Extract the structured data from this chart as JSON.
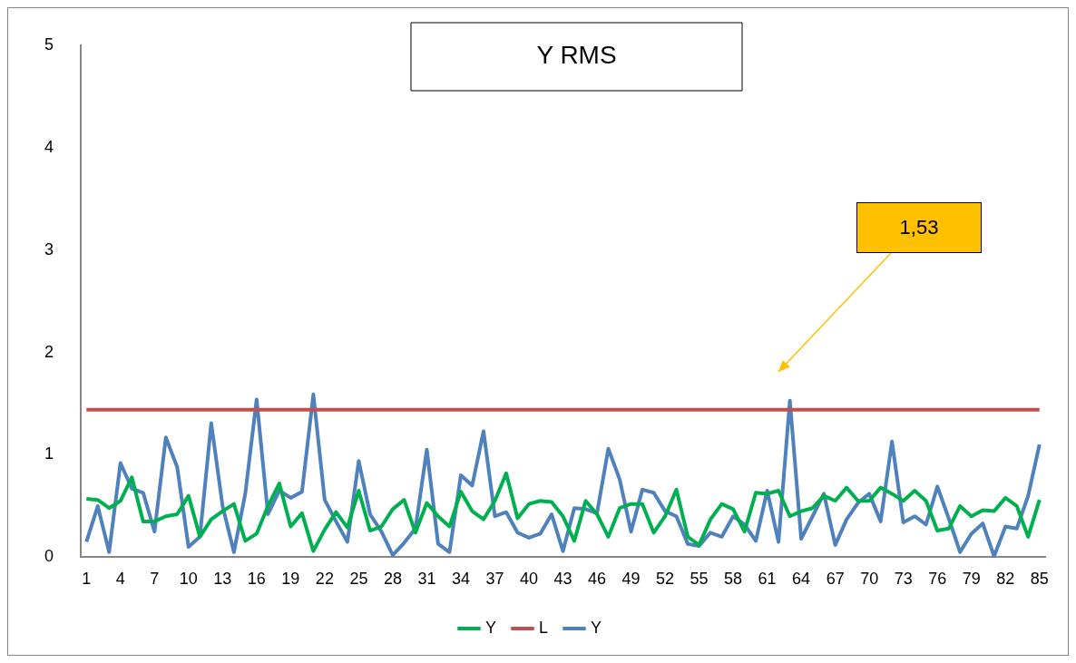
{
  "chart_data": {
    "type": "line",
    "title": "Y RMS",
    "categories": [
      "1",
      null,
      null,
      "4",
      null,
      null,
      "7",
      null,
      null,
      "10",
      null,
      null,
      "13",
      null,
      null,
      "16",
      null,
      null,
      "19",
      null,
      null,
      "22",
      null,
      null,
      "25",
      null,
      null,
      "28",
      null,
      null,
      "31",
      null,
      null,
      "34",
      null,
      null,
      "37",
      null,
      null,
      "40",
      null,
      null,
      "43",
      null,
      null,
      "46",
      null,
      null,
      "49",
      null,
      null,
      "52",
      null,
      null,
      "55",
      null,
      null,
      "58",
      null,
      null,
      "61",
      null,
      null,
      "64",
      null,
      null,
      "67",
      null,
      null,
      "70",
      null,
      null,
      "73",
      null,
      null,
      "76",
      null,
      null,
      "79",
      null,
      null,
      "82",
      null,
      null,
      "85"
    ],
    "series": [
      {
        "name": "Y",
        "color": "#00b050",
        "values": [
          0.57,
          0.56,
          0.48,
          0.55,
          0.78,
          0.35,
          0.35,
          0.4,
          0.42,
          0.6,
          0.2,
          0.37,
          0.45,
          0.52,
          0.16,
          0.23,
          0.5,
          0.72,
          0.3,
          0.43,
          0.06,
          0.27,
          0.44,
          0.29,
          0.65,
          0.26,
          0.3,
          0.47,
          0.56,
          0.24,
          0.53,
          0.4,
          0.3,
          0.64,
          0.45,
          0.37,
          0.55,
          0.82,
          0.38,
          0.52,
          0.55,
          0.54,
          0.4,
          0.16,
          0.55,
          0.42,
          0.2,
          0.48,
          0.52,
          0.52,
          0.24,
          0.4,
          0.66,
          0.2,
          0.12,
          0.37,
          0.52,
          0.47,
          0.25,
          0.63,
          0.62,
          0.65,
          0.4,
          0.45,
          0.48,
          0.6,
          0.55,
          0.68,
          0.55,
          0.55,
          0.68,
          0.62,
          0.55,
          0.65,
          0.55,
          0.26,
          0.28,
          0.5,
          0.4,
          0.46,
          0.45,
          0.58,
          0.5,
          0.2,
          0.56
        ]
      },
      {
        "name": "L",
        "color": "#c0504d",
        "values": [
          1.44,
          1.44,
          1.44,
          1.44,
          1.44,
          1.44,
          1.44,
          1.44,
          1.44,
          1.44,
          1.44,
          1.44,
          1.44,
          1.44,
          1.44,
          1.44,
          1.44,
          1.44,
          1.44,
          1.44,
          1.44,
          1.44,
          1.44,
          1.44,
          1.44,
          1.44,
          1.44,
          1.44,
          1.44,
          1.44,
          1.44,
          1.44,
          1.44,
          1.44,
          1.44,
          1.44,
          1.44,
          1.44,
          1.44,
          1.44,
          1.44,
          1.44,
          1.44,
          1.44,
          1.44,
          1.44,
          1.44,
          1.44,
          1.44,
          1.44,
          1.44,
          1.44,
          1.44,
          1.44,
          1.44,
          1.44,
          1.44,
          1.44,
          1.44,
          1.44,
          1.44,
          1.44,
          1.44,
          1.44,
          1.44,
          1.44,
          1.44,
          1.44,
          1.44,
          1.44,
          1.44,
          1.44,
          1.44,
          1.44,
          1.44,
          1.44,
          1.44,
          1.44,
          1.44,
          1.44,
          1.44,
          1.44,
          1.44,
          1.44,
          1.44
        ]
      },
      {
        "name": "Y",
        "color": "#4f81bd",
        "values": [
          0.15,
          0.5,
          0.05,
          0.92,
          0.67,
          0.63,
          0.25,
          1.17,
          0.88,
          0.1,
          0.2,
          1.31,
          0.5,
          0.05,
          0.62,
          1.54,
          0.42,
          0.65,
          0.58,
          0.64,
          1.59,
          0.56,
          0.35,
          0.15,
          0.94,
          0.42,
          0.25,
          0.02,
          0.14,
          0.28,
          1.05,
          0.13,
          0.05,
          0.8,
          0.7,
          1.23,
          0.4,
          0.44,
          0.24,
          0.19,
          0.23,
          0.42,
          0.06,
          0.48,
          0.47,
          0.43,
          1.06,
          0.76,
          0.25,
          0.66,
          0.63,
          0.45,
          0.4,
          0.13,
          0.11,
          0.24,
          0.2,
          0.4,
          0.32,
          0.16,
          0.65,
          0.15,
          1.53,
          0.18,
          0.4,
          0.62,
          0.12,
          0.37,
          0.53,
          0.62,
          0.35,
          1.13,
          0.34,
          0.4,
          0.32,
          0.69,
          0.38,
          0.05,
          0.23,
          0.33,
          0.01,
          0.3,
          0.28,
          0.6,
          1.1
        ]
      }
    ],
    "ylim": [
      0,
      5
    ],
    "yticks": [
      0,
      1,
      2,
      3,
      4,
      5
    ],
    "grid": false,
    "legend": "bottom",
    "marker": "none",
    "annotations": [
      "1,53"
    ]
  }
}
